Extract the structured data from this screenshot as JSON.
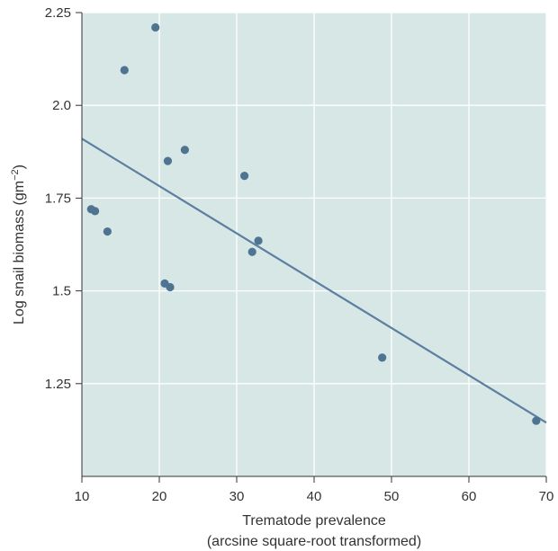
{
  "chart_data": {
    "type": "scatter",
    "title": "",
    "xlabel_line1": "Trematode prevalence",
    "xlabel_line2": "(arcsine square-root transformed)",
    "ylabel_base": "Log snail biomass (gm",
    "ylabel_sup": "−2",
    "ylabel_close": ")",
    "xlim": [
      10,
      70
    ],
    "ylim": [
      1.0,
      2.25
    ],
    "x_ticks": [
      10,
      20,
      30,
      40,
      50,
      60,
      70
    ],
    "x_tick_labels": [
      "10",
      "20",
      "30",
      "40",
      "50",
      "60",
      "70"
    ],
    "y_ticks": [
      1.25,
      1.5,
      1.75,
      2.0,
      2.25
    ],
    "y_tick_labels": [
      "1.25",
      "1.5",
      "1.75",
      "2.0",
      "2.25"
    ],
    "grid": true,
    "series": [
      {
        "points": [
          {
            "x": 19.5,
            "y": 2.21
          },
          {
            "x": 15.5,
            "y": 2.095
          },
          {
            "x": 23.3,
            "y": 1.88
          },
          {
            "x": 21.1,
            "y": 1.85
          },
          {
            "x": 31.0,
            "y": 1.81
          },
          {
            "x": 11.2,
            "y": 1.72
          },
          {
            "x": 11.7,
            "y": 1.715
          },
          {
            "x": 13.3,
            "y": 1.66
          },
          {
            "x": 32.8,
            "y": 1.635
          },
          {
            "x": 32.0,
            "y": 1.605
          },
          {
            "x": 20.7,
            "y": 1.52
          },
          {
            "x": 21.4,
            "y": 1.51
          },
          {
            "x": 48.8,
            "y": 1.32
          },
          {
            "x": 68.7,
            "y": 1.15
          }
        ]
      }
    ],
    "trendline": {
      "x": [
        10,
        70
      ],
      "y": [
        1.91,
        1.145
      ]
    },
    "colors": {
      "plot_background": "#d6e7e6",
      "grid": "#ffffff",
      "points": "#4e7491",
      "trendline": "#5c7fa0",
      "axis": "#333333"
    }
  }
}
